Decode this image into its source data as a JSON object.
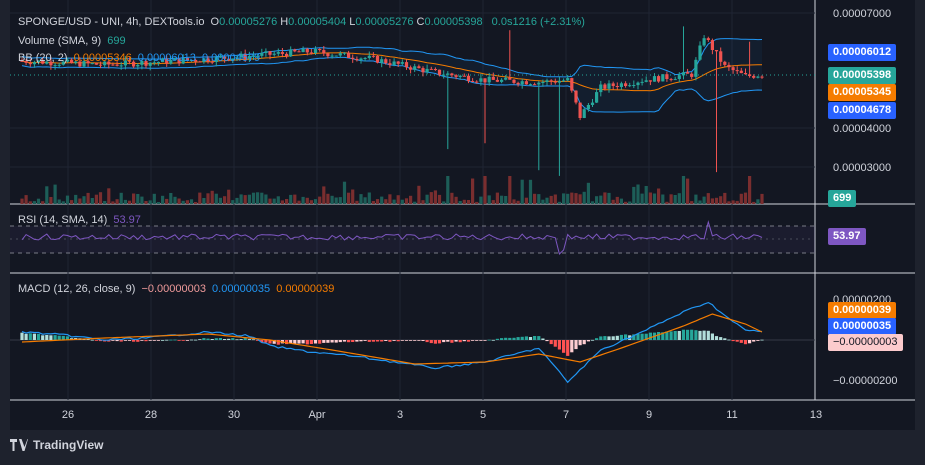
{
  "header": {
    "symbol": "SPONGE/USD - UNI, 4h, DEXTools.io",
    "ohlc": [
      {
        "k": "O",
        "v": "0.00005276"
      },
      {
        "k": "H",
        "v": "0.00005404"
      },
      {
        "k": "L",
        "v": "0.00005276"
      },
      {
        "k": "C",
        "v": "0.00005398"
      }
    ],
    "change": "0.0s1216 (+2.31%)",
    "volume_label": "Volume (SMA, 9)",
    "volume_value": "699",
    "bb_label": "BB (20, 2)",
    "bb_values": [
      "0.00005346",
      "0.00006013",
      "0.00004679"
    ]
  },
  "rsi": {
    "label": "RSI (14, SMA, 14)",
    "value": "53.97"
  },
  "macd": {
    "label": "MACD (12, 26, close, 9)",
    "values": [
      "−0.00000003",
      "0.00000035",
      "0.00000039"
    ]
  },
  "price_axis": {
    "ticks": [
      "0.00007000",
      "0.00004000",
      "0.00003000"
    ],
    "pills": [
      {
        "text": "0.00006012",
        "color": "#2962ff"
      },
      {
        "text": "0.00005398",
        "color": "#26a69a"
      },
      {
        "text": "0.00005345",
        "color": "#f57c00"
      },
      {
        "text": "0.00004678",
        "color": "#2962ff"
      },
      {
        "text": "699",
        "color": "#26a69a"
      }
    ]
  },
  "rsi_axis": {
    "pill": "53.97"
  },
  "macd_axis": {
    "ticks": [
      "0.00000200",
      "−0.00000200"
    ],
    "pills": [
      {
        "text": "0.00000039",
        "color": "#f57c00"
      },
      {
        "text": "0.00000035",
        "color": "#2962ff"
      },
      {
        "text": "−0.00000003",
        "color": "#fccbcd"
      }
    ]
  },
  "time_axis": [
    "26",
    "28",
    "30",
    "Apr",
    "3",
    "5",
    "7",
    "9",
    "11",
    "13"
  ],
  "colors": {
    "up": "#26a69a",
    "down": "#ef5350",
    "bb_band": "#2196f3",
    "bb_basis": "#f57c00",
    "rsi": "#7e57c2",
    "macd": "#2196f3",
    "signal": "#f57c00"
  },
  "footer": {
    "brand": "TradingView"
  },
  "chart_data": {
    "type": "candlestick",
    "timeframe": "4h",
    "x_ticks": [
      "26",
      "28",
      "30",
      "Apr",
      "3",
      "5",
      "7",
      "9",
      "11",
      "13"
    ],
    "price_ylim": [
      2.3e-05,
      7e-05
    ],
    "candles": [],
    "indicators": {
      "bollinger": {
        "period": 20,
        "stddev": 2,
        "basis": 5.346e-05,
        "upper": 6.013e-05,
        "lower": 4.679e-05
      },
      "volume_sma": {
        "period": 9,
        "value": 699
      },
      "rsi": {
        "period": 14,
        "value": 53.97
      },
      "macd": {
        "fast": 12,
        "slow": 26,
        "signal": 9,
        "histogram": -3e-08,
        "macd": 3.5e-07,
        "signal_value": 3.9e-07
      }
    }
  }
}
